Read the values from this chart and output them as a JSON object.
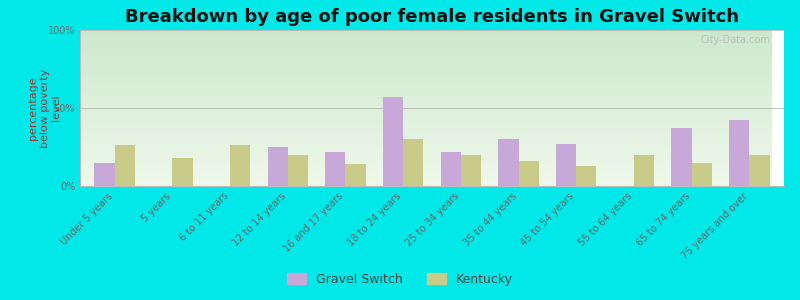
{
  "title": "Breakdown by age of poor female residents in Gravel Switch",
  "ylabel": "percentage\nbelow poverty\nlevel",
  "categories": [
    "Under 5 years",
    "5 years",
    "6 to 11 years",
    "12 to 14 years",
    "16 and 17 years",
    "18 to 24 years",
    "25 to 34 years",
    "35 to 44 years",
    "45 to 54 years",
    "55 to 64 years",
    "65 to 74 years",
    "75 years and over"
  ],
  "gravel_switch": [
    15,
    0,
    0,
    25,
    22,
    57,
    22,
    30,
    27,
    0,
    37,
    42
  ],
  "kentucky": [
    26,
    18,
    26,
    20,
    14,
    30,
    20,
    16,
    13,
    20,
    15,
    20
  ],
  "gravel_switch_color": "#c8a8d8",
  "kentucky_color": "#c8cc88",
  "background_color": "#00e8e8",
  "plot_bg_top": "#cce8cc",
  "plot_bg_bottom": "#eef8ee",
  "title_color": "#111111",
  "ylabel_color": "#993333",
  "ylim": [
    0,
    100
  ],
  "yticks": [
    0,
    50,
    100
  ],
  "ytick_labels": [
    "0%",
    "50%",
    "100%"
  ],
  "bar_width": 0.35,
  "title_fontsize": 13,
  "axis_label_fontsize": 8,
  "tick_label_fontsize": 7,
  "legend_fontsize": 9,
  "watermark": "City-Data.com"
}
